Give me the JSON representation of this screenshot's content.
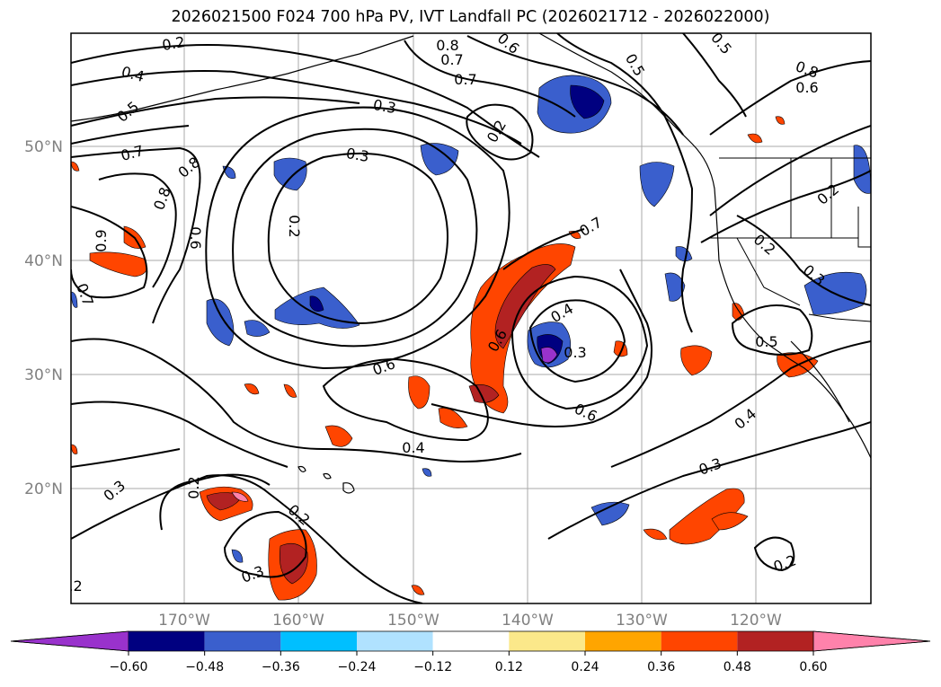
{
  "title": "2026021500 F024 700 hPa PV, IVT Landfall PC (2026021712 - 2026022000)",
  "map": {
    "lat_labels": [
      "50°N",
      "40°N",
      "30°N",
      "20°N"
    ],
    "lon_labels": [
      "170°W",
      "160°W",
      "150°W",
      "140°W",
      "130°W",
      "120°W"
    ],
    "contour_labels": [
      "0.2",
      "0.8",
      "0.6",
      "0.7",
      "0.5",
      "0.7",
      "0.8",
      "0.6",
      "0.4",
      "0.5",
      "0.3",
      "0.2",
      "0.3",
      "0.7",
      "0.8",
      "0.8",
      "0.5",
      "0.6",
      "0.9",
      "0.7",
      "0.2",
      "0.7",
      "0.4",
      "0.6",
      "0.3",
      "0.6",
      "0.6",
      "0.4",
      "0.2",
      "0.3",
      "0.5",
      "0.4",
      "0.3",
      "0.2",
      "0.3",
      "0.2",
      "0.2",
      "0.3",
      "0.2",
      "0.2"
    ]
  },
  "colorbar": {
    "ticks": [
      "−0.60",
      "−0.48",
      "−0.36",
      "−0.24",
      "−0.12",
      "0.12",
      "0.24",
      "0.36",
      "0.48",
      "0.60"
    ],
    "colors": [
      "#9932cc",
      "#000080",
      "#3a5fcd",
      "#00bfff",
      "#b0e2ff",
      "#ffffff",
      "#fbe88a",
      "#ffa500",
      "#ff4500",
      "#b22222",
      "#ff82ab"
    ]
  },
  "colors": {
    "gridline": "#aaaaaa",
    "contour": "#000000"
  }
}
